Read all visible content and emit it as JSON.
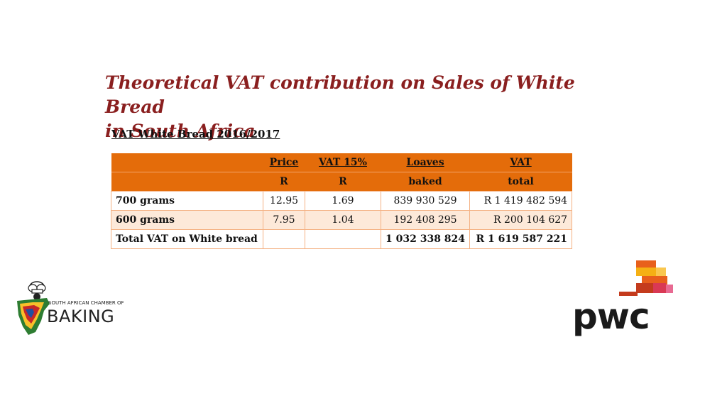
{
  "slide": {
    "title_line1": "Theoretical VAT contribution on Sales of White Bread",
    "title_line2": "in South Africa",
    "subtitle": "VAT White Bread 2016/2017"
  },
  "table": {
    "header_row1": [
      "",
      "Price",
      "VAT 15%",
      "Loaves",
      "VAT"
    ],
    "header_row2": [
      "",
      "R",
      "R",
      "baked",
      "total"
    ],
    "rows": [
      {
        "label": "700 grams",
        "price": "12.95",
        "vat": "1.69",
        "loaves": "839 930 529",
        "total": "R 1 419 482 594"
      },
      {
        "label": "600 grams",
        "price": "7.95",
        "vat": "1.04",
        "loaves": "192 408 295",
        "total": "R 200 104 627"
      },
      {
        "label": "Total VAT on White bread",
        "price": "",
        "vat": "",
        "loaves": "1 032 338 824",
        "total": "R 1 619 587 221"
      }
    ]
  },
  "logos": {
    "baking_line1": "SOUTH AFRICAN CHAMBER OF",
    "baking_line2": "BAKING",
    "pwc": "pwc"
  },
  "colors": {
    "title": "#8a1f1f",
    "header_bg": "#e46c0a",
    "alt_row_bg": "#fde9d9",
    "pwc_orange": "#e8601c",
    "pwc_red": "#d93954",
    "pwc_yellow": "#f5b014"
  }
}
